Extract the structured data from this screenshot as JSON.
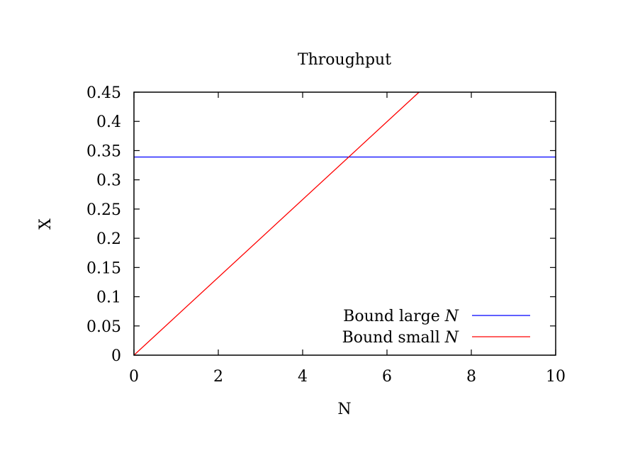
{
  "chart_data": {
    "type": "line",
    "title": "Throughput",
    "xlabel": "N",
    "ylabel": "X",
    "xlim": [
      0,
      10
    ],
    "ylim": [
      0,
      0.45
    ],
    "xticks": [
      "0",
      "2",
      "4",
      "6",
      "8",
      "10"
    ],
    "yticks": [
      "0",
      "0.05",
      "0.1",
      "0.15",
      "0.2",
      "0.25",
      "0.3",
      "0.35",
      "0.4",
      "0.45"
    ],
    "grid": false,
    "legend_position": "bottom-right",
    "series": [
      {
        "name_prefix": "Bound large ",
        "name_var": "N",
        "color": "#0000ff",
        "x": [
          0,
          10
        ],
        "y": [
          0.339,
          0.339
        ]
      },
      {
        "name_prefix": "Bound small ",
        "name_var": "N",
        "color": "#ff0000",
        "x": [
          0,
          6.76
        ],
        "y": [
          0,
          0.45
        ]
      }
    ]
  }
}
